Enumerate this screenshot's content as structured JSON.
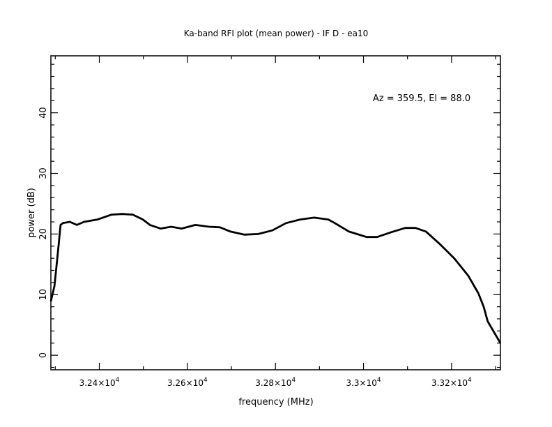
{
  "chart_data": {
    "type": "line",
    "title": "Ka-band RFI plot (mean power) - IF D - ea10",
    "xlabel": "frequency (MHz)",
    "ylabel": "power (dB)",
    "annotation": "Az = 359.5, El = 88.0",
    "xlim": [
      32290,
      33311
    ],
    "ylim": [
      -2.4,
      49.4
    ],
    "grid": false,
    "x_ticks": [
      32400,
      32600,
      32800,
      33000,
      33200
    ],
    "x_tick_labels": [
      {
        "mant": "3.24×10",
        "exp": "4"
      },
      {
        "mant": "3.26×10",
        "exp": "4"
      },
      {
        "mant": "3.28×10",
        "exp": "4"
      },
      {
        "mant": "3.3×10",
        "exp": "4"
      },
      {
        "mant": "3.32×10",
        "exp": "4"
      }
    ],
    "y_ticks": [
      0,
      10,
      20,
      30,
      40
    ],
    "y_tick_labels": [
      "0",
      "10",
      "20",
      "30",
      "40"
    ],
    "series": [
      {
        "name": "mean power",
        "color": "#000000",
        "x": [
          32290,
          32298,
          32306,
          32312,
          32317,
          32333,
          32349,
          32365,
          32396,
          32428,
          32452,
          32476,
          32499,
          32515,
          32539,
          32563,
          32587,
          32618,
          32650,
          32674,
          32698,
          32729,
          32761,
          32793,
          32824,
          32856,
          32888,
          32920,
          32935,
          32967,
          33007,
          33031,
          33063,
          33095,
          33118,
          33142,
          33174,
          33206,
          33238,
          33261,
          33273,
          33282
        ],
        "y": [
          8.9,
          11.4,
          17.0,
          21.5,
          21.8,
          22.0,
          21.5,
          22.0,
          22.4,
          23.2,
          23.3,
          23.2,
          22.4,
          21.5,
          20.9,
          21.2,
          20.9,
          21.5,
          21.2,
          21.1,
          20.4,
          19.9,
          20.0,
          20.6,
          21.8,
          22.4,
          22.7,
          22.4,
          21.8,
          20.4,
          19.5,
          19.5,
          20.3,
          21.0,
          21.0,
          20.4,
          18.3,
          16.0,
          13.1,
          10.2,
          8.0,
          5.6
        ]
      }
    ],
    "series_end": {
      "x": 33311,
      "y": 2.0
    }
  }
}
